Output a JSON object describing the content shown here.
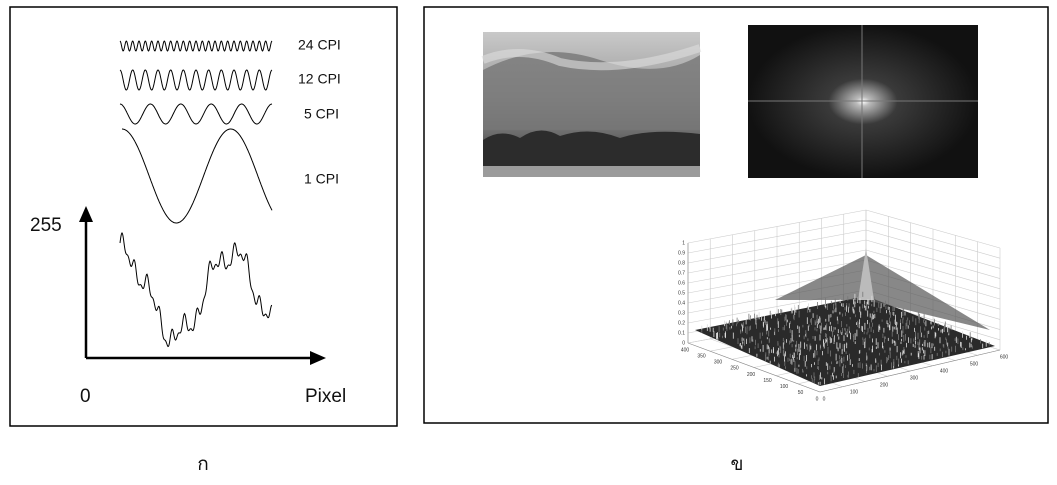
{
  "panel_a": {
    "waves": [
      "24 CPI",
      "12 CPI",
      "5 CPI",
      "1 CPI"
    ],
    "y_label": "255",
    "origin_label": "0",
    "x_label": "Pixel",
    "caption": "ก"
  },
  "panel_b": {
    "caption": "ข",
    "plot_z_ticks": [
      "0",
      "0.1",
      "0.2",
      "0.3",
      "0.4",
      "0.5",
      "0.6",
      "0.7",
      "0.8",
      "0.9",
      "1"
    ],
    "plot_left_ticks": [
      "400",
      "350",
      "300",
      "250",
      "200",
      "150",
      "100",
      "50",
      "0"
    ],
    "plot_right_ticks": [
      "0",
      "100",
      "200",
      "300",
      "400",
      "500",
      "600"
    ]
  }
}
